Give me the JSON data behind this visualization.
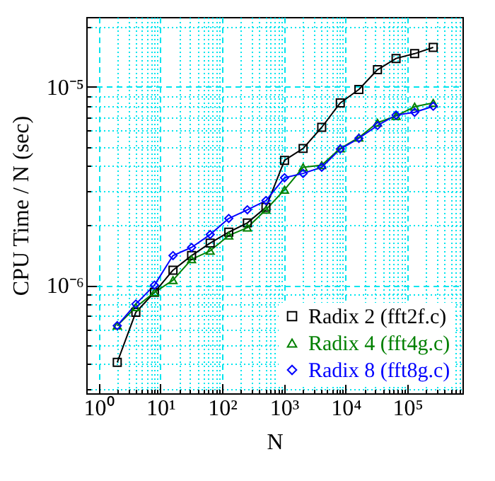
{
  "chart_data": {
    "type": "line",
    "xlabel": "N",
    "ylabel": "CPU Time / N (sec)",
    "x": [
      2,
      4,
      8,
      16,
      32,
      64,
      128,
      256,
      512,
      1024,
      2048,
      4096,
      8192,
      16384,
      32768,
      65536,
      131072,
      262144
    ],
    "series": [
      {
        "name": "Radix 2 (fft2f.c)",
        "color": "#000000",
        "marker": "square",
        "values": [
          4.08e-07,
          7.3e-07,
          9.2e-07,
          1.19e-06,
          1.41e-06,
          1.63e-06,
          1.85e-06,
          2.06e-06,
          2.47e-06,
          4.26e-06,
          4.89e-06,
          6.25e-06,
          8.3e-06,
          9.7e-06,
          1.22e-05,
          1.39e-05,
          1.47e-05,
          1.58e-05
        ]
      },
      {
        "name": "Radix 4 (fft4g.c)",
        "color": "#008000",
        "marker": "triangle",
        "values": [
          6.25e-07,
          7.74e-07,
          9.2e-07,
          1.06e-06,
          1.35e-06,
          1.49e-06,
          1.78e-06,
          1.95e-06,
          2.4e-06,
          3.03e-06,
          3.93e-06,
          4.03e-06,
          4.89e-06,
          5.55e-06,
          6.59e-06,
          7.13e-06,
          7.94e-06,
          8.3e-06
        ]
      },
      {
        "name": "Radix 8 (fft8g.c)",
        "color": "#0000ff",
        "marker": "diamond",
        "values": [
          6.25e-07,
          8.03e-07,
          1e-06,
          1.41e-06,
          1.55e-06,
          1.8e-06,
          2.17e-06,
          2.4e-06,
          2.67e-06,
          3.48e-06,
          3.66e-06,
          3.93e-06,
          4.86e-06,
          5.5e-06,
          6.38e-06,
          7.2e-06,
          7.44e-06,
          7.98e-06
        ]
      }
    ],
    "log": "xy",
    "xlim": [
      0.63,
      780000
    ],
    "ylim": [
      2.85e-07,
      2.25e-05
    ],
    "xticks": [
      {
        "value": 1,
        "label": "10⁰"
      },
      {
        "value": 2,
        "label": null
      },
      {
        "value": 3,
        "label": null
      },
      {
        "value": 4,
        "label": null
      },
      {
        "value": 5,
        "label": null
      },
      {
        "value": 6,
        "label": null
      },
      {
        "value": 7,
        "label": null
      },
      {
        "value": 8,
        "label": null
      },
      {
        "value": 9,
        "label": null
      },
      {
        "value": 10,
        "label": "10¹"
      },
      {
        "value": 20,
        "label": null
      },
      {
        "value": 30,
        "label": null
      },
      {
        "value": 40,
        "label": null
      },
      {
        "value": 50,
        "label": null
      },
      {
        "value": 60,
        "label": null
      },
      {
        "value": 70,
        "label": null
      },
      {
        "value": 80,
        "label": null
      },
      {
        "value": 90,
        "label": null
      },
      {
        "value": 100,
        "label": "10²"
      },
      {
        "value": 200,
        "label": null
      },
      {
        "value": 300,
        "label": null
      },
      {
        "value": 400,
        "label": null
      },
      {
        "value": 500,
        "label": null
      },
      {
        "value": 600,
        "label": null
      },
      {
        "value": 700,
        "label": null
      },
      {
        "value": 800,
        "label": null
      },
      {
        "value": 900,
        "label": null
      },
      {
        "value": 1000,
        "label": "10³"
      },
      {
        "value": 2000,
        "label": null
      },
      {
        "value": 3000,
        "label": null
      },
      {
        "value": 4000,
        "label": null
      },
      {
        "value": 5000,
        "label": null
      },
      {
        "value": 6000,
        "label": null
      },
      {
        "value": 7000,
        "label": null
      },
      {
        "value": 8000,
        "label": null
      },
      {
        "value": 9000,
        "label": null
      },
      {
        "value": 10000,
        "label": "10⁴"
      },
      {
        "value": 20000,
        "label": null
      },
      {
        "value": 30000,
        "label": null
      },
      {
        "value": 40000,
        "label": null
      },
      {
        "value": 50000,
        "label": null
      },
      {
        "value": 60000,
        "label": null
      },
      {
        "value": 70000,
        "label": null
      },
      {
        "value": 80000,
        "label": null
      },
      {
        "value": 90000,
        "label": null
      },
      {
        "value": 100000,
        "label": "10⁵"
      },
      {
        "value": 200000,
        "label": null
      },
      {
        "value": 300000,
        "label": null
      },
      {
        "value": 400000,
        "label": null
      },
      {
        "value": 500000,
        "label": null
      },
      {
        "value": 600000,
        "label": null
      },
      {
        "value": 700000,
        "label": null
      }
    ],
    "yticks": [
      {
        "value": 3e-07,
        "label": null
      },
      {
        "value": 4e-07,
        "label": null
      },
      {
        "value": 5e-07,
        "label": null
      },
      {
        "value": 6e-07,
        "label": null
      },
      {
        "value": 7e-07,
        "label": null
      },
      {
        "value": 8e-07,
        "label": null
      },
      {
        "value": 9e-07,
        "label": null
      },
      {
        "value": 1e-06,
        "label": "10⁻⁶"
      },
      {
        "value": 2e-06,
        "label": null
      },
      {
        "value": 3e-06,
        "label": null
      },
      {
        "value": 4e-06,
        "label": null
      },
      {
        "value": 5e-06,
        "label": null
      },
      {
        "value": 6e-06,
        "label": null
      },
      {
        "value": 7e-06,
        "label": null
      },
      {
        "value": 8e-06,
        "label": null
      },
      {
        "value": 9e-06,
        "label": null
      },
      {
        "value": 1e-05,
        "label": "10⁻⁵"
      },
      {
        "value": 2e-05,
        "label": null
      }
    ],
    "grid": true,
    "legend": "bottom right",
    "line_style": "solid"
  }
}
